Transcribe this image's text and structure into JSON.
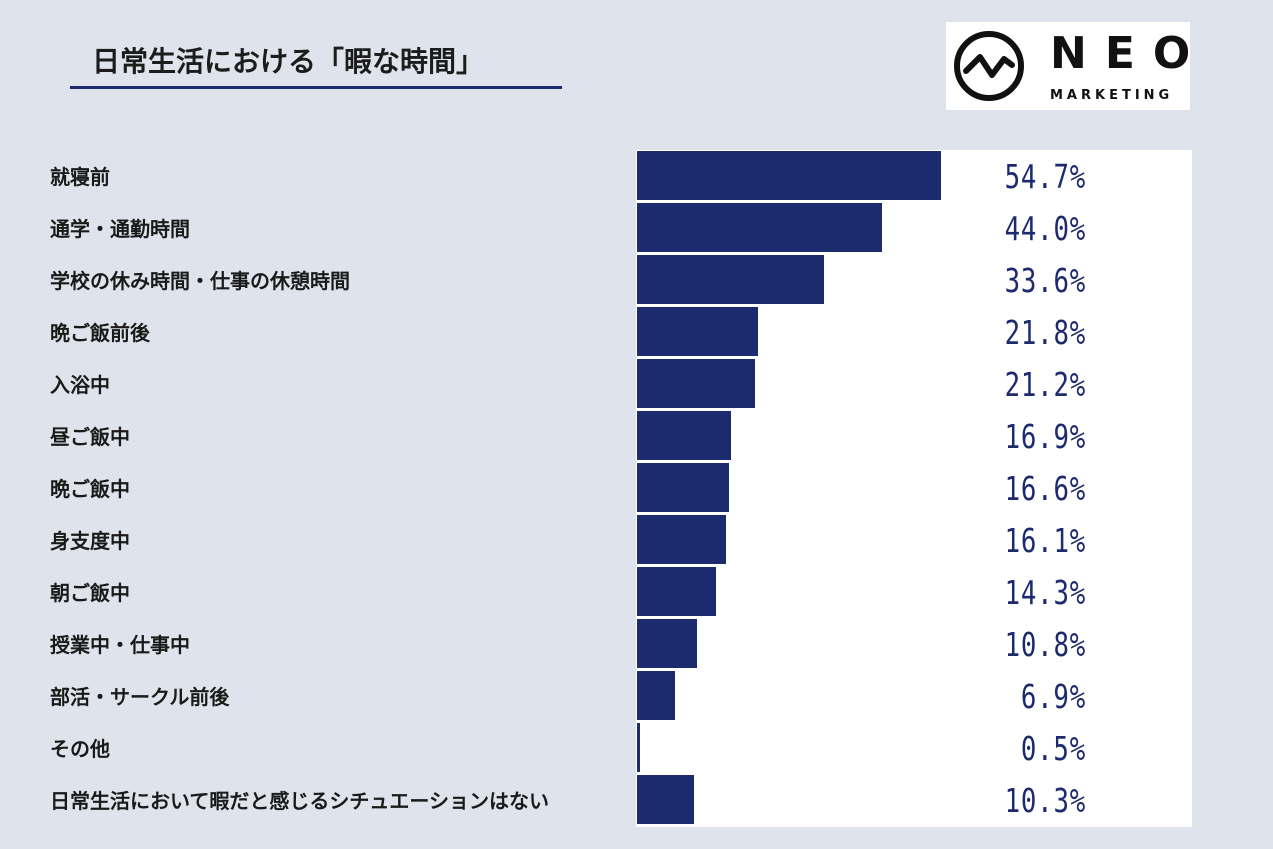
{
  "title": "日常生活における「暇な時間」",
  "logo": {
    "name": "NEO",
    "subtitle": "MARKETING"
  },
  "colors": {
    "bar": "#1c2a6e",
    "background": "#dfe4ec",
    "underline": "#1d2a6e"
  },
  "chart_data": {
    "type": "bar",
    "orientation": "horizontal",
    "title": "日常生活における「暇な時間」",
    "categories": [
      "就寝前",
      "通学・通勤時間",
      "学校の休み時間・仕事の休憩時間",
      "晩ご飯前後",
      "入浴中",
      "昼ご飯中",
      "晩ご飯中",
      "身支度中",
      "朝ご飯中",
      "授業中・仕事中",
      "部活・サークル前後",
      "その他",
      "日常生活において暇だと感じるシチュエーションはない"
    ],
    "values": [
      54.7,
      44.0,
      33.6,
      21.8,
      21.2,
      16.9,
      16.6,
      16.1,
      14.3,
      10.8,
      6.9,
      0.5,
      10.3
    ],
    "value_labels": [
      "54.7%",
      "44.0%",
      "33.6%",
      "21.8%",
      "21.2%",
      "16.9%",
      "16.6%",
      "16.1%",
      "14.3%",
      "10.8%",
      "6.9%",
      "0.5%",
      "10.3%"
    ],
    "unit": "%",
    "grid": false,
    "legend": "none"
  }
}
